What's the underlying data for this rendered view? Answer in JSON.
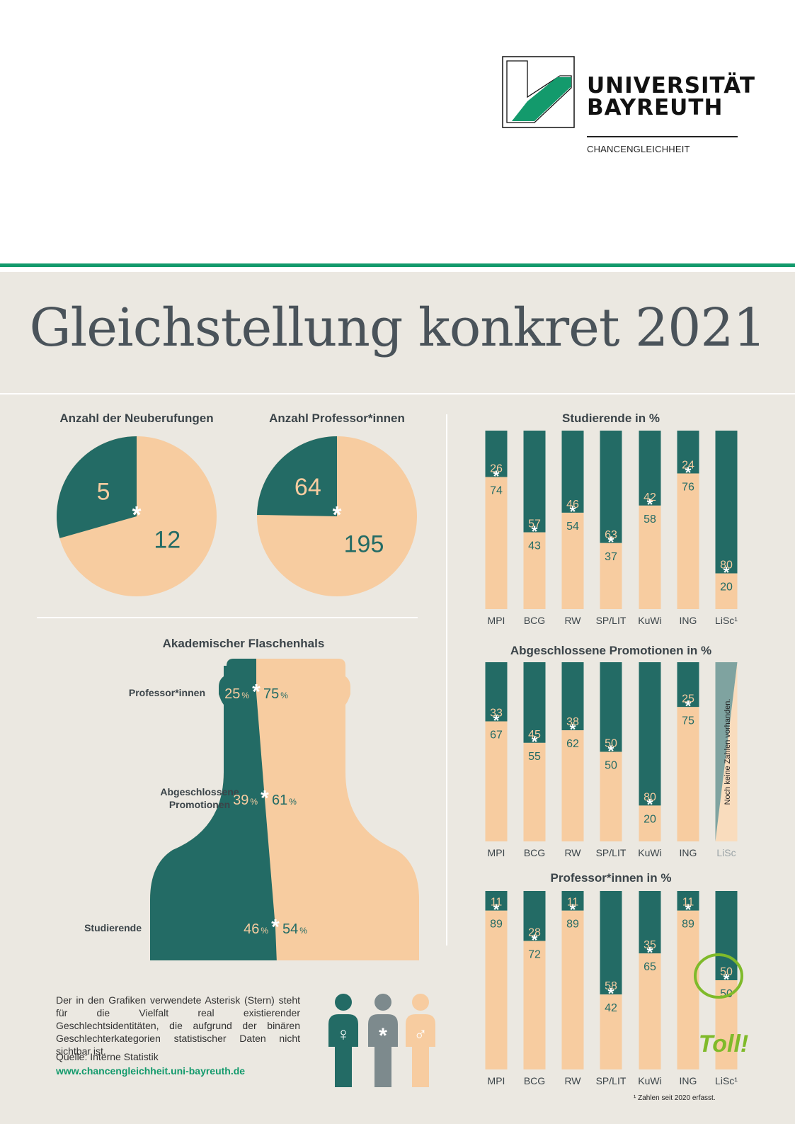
{
  "header": {
    "logo_line1": "UNIVERSITÄT",
    "logo_line2": "BAYREUTH",
    "logo_subtitle": "CHANCENGLEICHHEIT"
  },
  "title": "Gleichstellung konkret 2021",
  "colors": {
    "women": "#236b65",
    "men": "#f7cca0",
    "diverse": "#7d8a8d",
    "brand_green": "#139a6c",
    "panel": "#ebe8e1"
  },
  "pies": {
    "neuberufungen": {
      "title": "Anzahl der Neuberufungen",
      "women": 5,
      "men": 12
    },
    "professoren": {
      "title": "Anzahl Professor*innen",
      "women": 64,
      "men": 195
    }
  },
  "bottleneck": {
    "title": "Akademischer Flaschenhals",
    "rows": [
      {
        "label": "Professor*innen",
        "women": 25,
        "men": 75
      },
      {
        "label_line1": "Abgeschlossene",
        "label_line2": "Promotionen",
        "women": 39,
        "men": 61
      },
      {
        "label": "Studierende",
        "women": 46,
        "men": 54
      }
    ],
    "percent_sign": "%"
  },
  "chart_data": [
    {
      "type": "bar",
      "title": "Studierende in %",
      "categories": [
        "MPI",
        "BCG",
        "RW",
        "SP/LIT",
        "KuWi",
        "ING",
        "LiSc¹"
      ],
      "series": [
        {
          "values": [
            26,
            57,
            46,
            63,
            42,
            24,
            80
          ]
        },
        {
          "values": [
            74,
            43,
            54,
            37,
            58,
            76,
            20
          ]
        }
      ],
      "ylim": [
        0,
        100
      ]
    },
    {
      "type": "bar",
      "title": "Abgeschlossene Promotionen in %",
      "categories": [
        "MPI",
        "BCG",
        "RW",
        "SP/LIT",
        "KuWi",
        "ING",
        "LiSc"
      ],
      "series": [
        {
          "values": [
            33,
            45,
            38,
            50,
            80,
            25,
            null
          ]
        },
        {
          "values": [
            67,
            55,
            62,
            50,
            20,
            75,
            null
          ]
        }
      ],
      "no_data_note": "Noch keine Zahlen vorhanden.",
      "ylim": [
        0,
        100
      ]
    },
    {
      "type": "bar",
      "title": "Professor*innen in %",
      "categories": [
        "MPI",
        "BCG",
        "RW",
        "SP/LIT",
        "KuWi",
        "ING",
        "LiSc¹"
      ],
      "series": [
        {
          "values": [
            11,
            28,
            11,
            58,
            35,
            11,
            50
          ]
        },
        {
          "values": [
            89,
            72,
            89,
            42,
            65,
            89,
            50
          ]
        }
      ],
      "ylim": [
        0,
        100
      ],
      "annotation": "Toll!"
    }
  ],
  "note": "Der in den Grafiken verwendete Asterisk (Stern) steht für die Vielfalt real existierender Geschlechtsidentitäten, die aufgrund der binären Geschlechterkategorien statistischer Daten nicht sichtbar ist.",
  "source": "Quelle: Interne Statistik",
  "website": "www.chancengleichheit.uni-bayreuth.de",
  "footnote": "¹ Zahlen seit 2020 erfasst.",
  "icons": [
    "female-icon",
    "asterisk-icon",
    "male-icon"
  ]
}
